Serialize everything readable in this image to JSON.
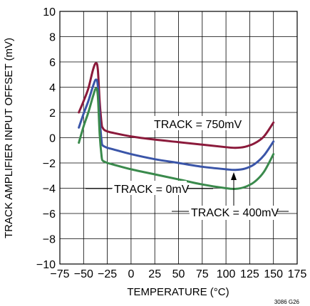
{
  "chart_data": {
    "type": "line",
    "xlabel": "TEMPERATURE (°C)",
    "ylabel": "TRACK AMPLIFIER INPUT OFFSET (mV)",
    "xlim": [
      -75,
      175
    ],
    "ylim": [
      -10,
      10
    ],
    "xticks": [
      -75,
      -50,
      -25,
      0,
      25,
      50,
      75,
      100,
      125,
      150,
      175
    ],
    "yticks": [
      -10,
      -8,
      -6,
      -4,
      -2,
      0,
      2,
      4,
      6,
      8,
      10
    ],
    "xtick_labels": [
      "−75",
      "−50",
      "−25",
      "0",
      "25",
      "50",
      "75",
      "100",
      "125",
      "150",
      "175"
    ],
    "ytick_labels": [
      "−10",
      "−8",
      "−6",
      "−4",
      "−2",
      "0",
      "2",
      "4",
      "6",
      "8",
      "10"
    ],
    "grid": true,
    "series": [
      {
        "name": "TRACK = 750mV",
        "color": "#8b1a3b",
        "x": [
          -55,
          -50,
          -45,
          -40,
          -37,
          -35,
          -33,
          -31,
          -30,
          -28,
          -25,
          -20,
          0,
          25,
          50,
          75,
          100,
          110,
          120,
          130,
          140,
          150
        ],
        "y": [
          2.0,
          2.9,
          3.9,
          5.4,
          5.9,
          5.4,
          2.8,
          1.1,
          0.8,
          0.6,
          0.5,
          0.4,
          0.1,
          -0.15,
          -0.35,
          -0.55,
          -0.75,
          -0.8,
          -0.72,
          -0.45,
          0.1,
          1.2
        ]
      },
      {
        "name": "TRACK = 400mV",
        "color": "#3a55a8",
        "x": [
          -55,
          -50,
          -45,
          -40,
          -37,
          -35,
          -33,
          -31,
          -30,
          -28,
          -25,
          -20,
          0,
          25,
          50,
          75,
          100,
          110,
          120,
          130,
          140,
          150
        ],
        "y": [
          0.8,
          1.9,
          2.9,
          4.1,
          4.6,
          4.1,
          1.5,
          -0.3,
          -0.6,
          -0.7,
          -0.8,
          -0.9,
          -1.3,
          -1.7,
          -2.0,
          -2.3,
          -2.5,
          -2.55,
          -2.45,
          -2.1,
          -1.4,
          -0.3
        ]
      },
      {
        "name": "TRACK = 0mV",
        "color": "#3a8a4c",
        "x": [
          -55,
          -50,
          -45,
          -40,
          -37,
          -35,
          -33,
          -31,
          -30,
          -28,
          -25,
          -20,
          0,
          25,
          50,
          75,
          100,
          110,
          120,
          130,
          140,
          150
        ],
        "y": [
          -0.4,
          0.9,
          2.0,
          3.3,
          3.9,
          3.3,
          0.2,
          -1.5,
          -1.8,
          -1.9,
          -2.0,
          -2.1,
          -2.5,
          -2.9,
          -3.3,
          -3.7,
          -4.0,
          -4.05,
          -3.9,
          -3.5,
          -2.7,
          -1.3
        ]
      }
    ],
    "annotations": [
      {
        "text": "TRACK = 750mV"
      },
      {
        "text": "TRACK = 0mV"
      },
      {
        "text": "TRACK = 400mV"
      }
    ],
    "figure_code": "3086 G26"
  }
}
